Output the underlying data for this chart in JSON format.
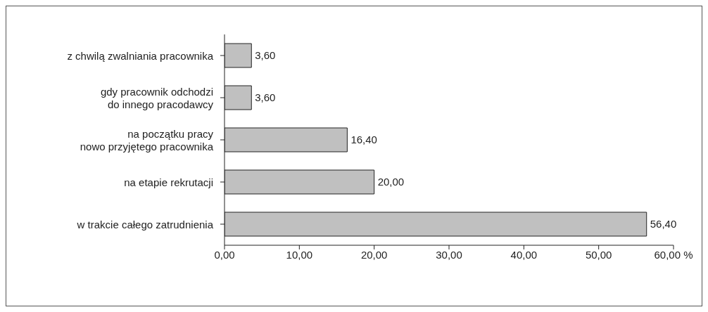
{
  "chart_data": {
    "type": "bar",
    "orientation": "horizontal",
    "categories": [
      "z chwilą zwalniania pracownika",
      "gdy pracownik odchodzi\ndo innego pracodawcy",
      "na początku pracy\nnowo przyjętego pracownika",
      "na etapie rekrutacji",
      "w trakcie całego zatrudnienia"
    ],
    "values": [
      3.6,
      3.6,
      16.4,
      20.0,
      56.4
    ],
    "value_labels": [
      "3,60",
      "3,60",
      "16,40",
      "20,00",
      "56,40"
    ],
    "color": "#c0c0c0",
    "xlim": [
      0,
      60
    ],
    "xticks": [
      {
        "value": 0,
        "label": "0,00"
      },
      {
        "value": 10,
        "label": "10,00"
      },
      {
        "value": 20,
        "label": "20,00"
      },
      {
        "value": 30,
        "label": "30,00"
      },
      {
        "value": 40,
        "label": "40,00"
      },
      {
        "value": 50,
        "label": "50,00"
      },
      {
        "value": 60,
        "label": "60,00 %"
      }
    ],
    "grid": false,
    "legend": false
  }
}
